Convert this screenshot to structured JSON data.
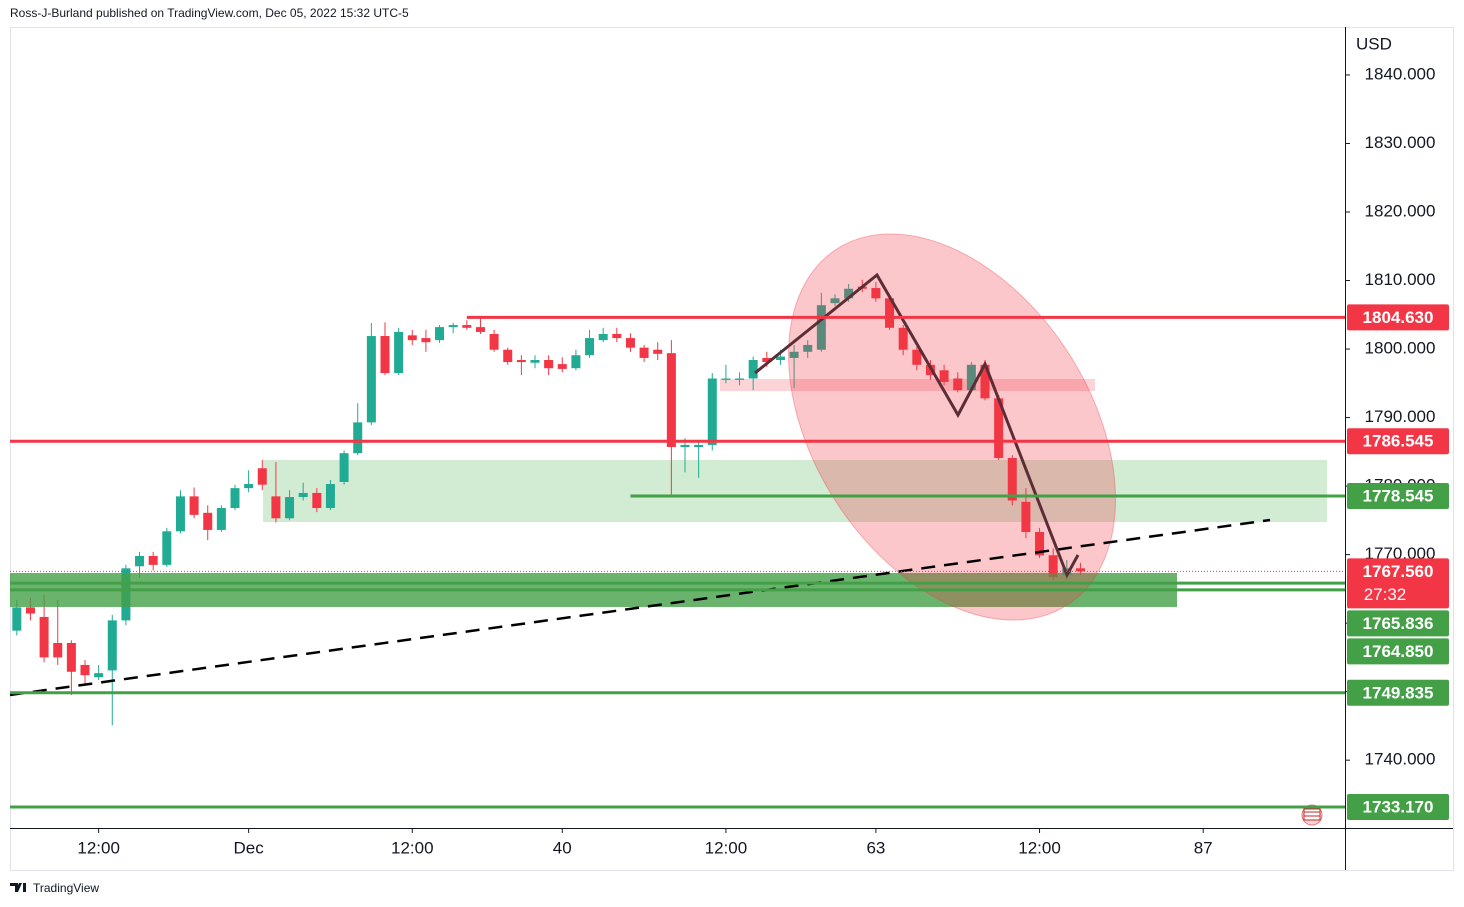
{
  "header": "Ross-J-Burland published on TradingView.com, Dec 05, 2022 15:32 UTC-5",
  "footer": "TradingView",
  "chart_data": {
    "type": "candlestick",
    "currency": "USD",
    "up_color": "#22ab94",
    "down_color": "#f23645",
    "x": [
      0,
      1,
      2,
      3,
      4,
      5,
      6,
      7,
      8,
      9,
      10,
      11,
      12,
      13,
      14,
      15,
      16,
      17,
      18,
      19,
      20,
      21,
      22,
      23,
      24,
      25,
      26,
      27,
      28,
      29,
      30,
      31,
      32,
      33,
      34,
      35,
      36,
      37,
      38,
      39,
      40,
      41,
      42,
      43,
      44,
      45,
      46,
      47,
      48,
      49,
      50,
      51,
      52,
      53,
      54,
      55,
      56,
      57,
      58,
      59,
      60,
      61,
      62,
      63,
      64,
      65,
      66,
      67,
      68,
      69,
      70,
      71,
      72,
      73,
      74,
      75,
      76,
      77,
      78
    ],
    "open": [
      1758.9,
      1762.3,
      1760.9,
      1757.1,
      1757.1,
      1753.9,
      1752.1,
      1753.1,
      1760.4,
      1768.3,
      1769.8,
      1768.5,
      1773.4,
      1778.5,
      1776.1,
      1773.6,
      1776.8,
      1779.7,
      1782.6,
      1778.5,
      1775.3,
      1778.4,
      1779.0,
      1776.8,
      1780.6,
      1784.8,
      1789.3,
      1801.9,
      1796.5,
      1802.0,
      1801.6,
      1801.3,
      1803.2,
      1803.5,
      1803.2,
      1802.2,
      1799.9,
      1798.4,
      1798.0,
      1798.4,
      1797.8,
      1797.2,
      1799.1,
      1801.3,
      1802.2,
      1801.6,
      1800.2,
      1799.9,
      1799.4,
      1785.7,
      1785.7,
      1786.0,
      1795.5,
      1795.5,
      1795.7,
      1798.7,
      1798.4,
      1798.7,
      1799.6,
      1799.9,
      1806.7,
      1807.4,
      1809.1,
      1808.9,
      1807.4,
      1803.1,
      1799.9,
      1797.7,
      1796.9,
      1795.7,
      1794.0,
      1797.7,
      1792.8,
      1784.1,
      1777.7,
      1773.3,
      1769.9,
      1767.0,
      1768.0
    ],
    "high": [
      1763.4,
      1763.7,
      1764.1,
      1763.4,
      1757.5,
      1754.6,
      1753.9,
      1761.2,
      1768.5,
      1770.4,
      1770.4,
      1773.9,
      1779.4,
      1779.8,
      1777.2,
      1777.2,
      1780.2,
      1782.3,
      1783.8,
      1783.5,
      1779.4,
      1780.5,
      1779.7,
      1780.9,
      1785.2,
      1792.1,
      1803.8,
      1803.9,
      1803.1,
      1802.8,
      1802.8,
      1803.5,
      1803.8,
      1804.2,
      1804.5,
      1802.8,
      1800.2,
      1799.1,
      1799.1,
      1799.1,
      1798.8,
      1799.9,
      1802.8,
      1803.1,
      1803.1,
      1802.3,
      1800.6,
      1801.0,
      1801.3,
      1787.0,
      1786.7,
      1796.5,
      1797.7,
      1796.6,
      1798.9,
      1799.6,
      1799.9,
      1800.6,
      1801.3,
      1808.2,
      1808.0,
      1809.5,
      1810.1,
      1809.8,
      1807.9,
      1803.5,
      1800.3,
      1798.4,
      1797.7,
      1796.6,
      1798.1,
      1798.4,
      1793.3,
      1784.5,
      1779.7,
      1773.9,
      1770.9,
      1769.2,
      1768.8
    ],
    "low": [
      1758.2,
      1760.4,
      1754.3,
      1753.9,
      1749.5,
      1751.0,
      1751.7,
      1745.1,
      1759.7,
      1766.6,
      1767.7,
      1768.2,
      1773.1,
      1775.3,
      1772.1,
      1773.3,
      1776.5,
      1779.1,
      1779.4,
      1774.7,
      1775.0,
      1777.9,
      1776.2,
      1776.5,
      1780.2,
      1784.5,
      1788.9,
      1796.2,
      1796.2,
      1800.6,
      1799.6,
      1800.9,
      1802.3,
      1802.8,
      1802.2,
      1799.6,
      1797.7,
      1796.2,
      1797.2,
      1796.2,
      1796.6,
      1796.9,
      1798.7,
      1801.0,
      1801.0,
      1799.6,
      1798.1,
      1798.4,
      1778.7,
      1782.0,
      1781.2,
      1785.2,
      1795.0,
      1794.7,
      1794.0,
      1797.4,
      1797.7,
      1794.3,
      1798.7,
      1799.6,
      1806.3,
      1806.9,
      1808.3,
      1806.9,
      1802.8,
      1799.1,
      1796.9,
      1795.5,
      1794.7,
      1793.7,
      1793.7,
      1792.5,
      1783.8,
      1777.2,
      1772.4,
      1769.5,
      1766.3,
      1766.3,
      1767.0
    ],
    "close": [
      1762.3,
      1761.4,
      1755.0,
      1755.0,
      1752.9,
      1752.4,
      1752.7,
      1760.4,
      1768.0,
      1769.8,
      1768.5,
      1773.4,
      1778.5,
      1775.8,
      1773.6,
      1776.8,
      1779.7,
      1780.3,
      1780.2,
      1775.3,
      1778.4,
      1779.0,
      1776.8,
      1780.3,
      1784.8,
      1789.3,
      1801.9,
      1796.5,
      1802.5,
      1801.3,
      1801.0,
      1803.2,
      1803.5,
      1803.1,
      1802.5,
      1799.9,
      1798.1,
      1798.1,
      1798.4,
      1797.2,
      1797.1,
      1799.1,
      1801.6,
      1802.2,
      1801.6,
      1800.2,
      1798.7,
      1799.3,
      1785.7,
      1786.0,
      1786.0,
      1795.7,
      1795.7,
      1795.7,
      1798.4,
      1798.1,
      1798.9,
      1799.6,
      1800.6,
      1806.4,
      1807.4,
      1808.8,
      1808.8,
      1807.4,
      1803.1,
      1799.9,
      1797.7,
      1796.2,
      1795.2,
      1794.0,
      1797.7,
      1792.8,
      1784.1,
      1777.9,
      1773.3,
      1769.9,
      1766.7,
      1768.0,
      1767.56
    ],
    "xlim": [
      -0.5,
      97.4
    ],
    "xticks": [
      {
        "value": 6,
        "label": "12:00"
      },
      {
        "value": 17,
        "label": "Dec"
      },
      {
        "value": 29,
        "label": "12:00"
      },
      40,
      {
        "value": 52,
        "label": "12:00"
      },
      63,
      {
        "value": 75,
        "label": "12:00"
      },
      87
    ],
    "ylim": [
      1730.1,
      1847.0
    ],
    "yticks": [
      {
        "value": 1740,
        "label": "1740.000"
      },
      {
        "value": 1750,
        "label": "1750.000"
      },
      {
        "value": 1760,
        "label": "1760.000"
      },
      {
        "value": 1770,
        "label": "1770.000"
      },
      {
        "value": 1780,
        "label": "1780.000"
      },
      {
        "value": 1790,
        "label": "1790.000"
      },
      {
        "value": 1800,
        "label": "1800.000"
      },
      {
        "value": 1810,
        "label": "1810.000"
      },
      {
        "value": 1820,
        "label": "1820.000"
      },
      {
        "value": 1830,
        "label": "1830.000"
      },
      {
        "value": 1840,
        "label": "1840.000"
      }
    ],
    "levels": [
      {
        "value": 1804.63,
        "label": "1804.630",
        "color": "#f23645",
        "start": 33
      },
      {
        "value": 1786.545,
        "label": "1786.545",
        "color": "#f23645"
      },
      {
        "value": 1778.545,
        "label": "1778.545",
        "color": "#43a047",
        "start": 45
      },
      {
        "value": 1765.836,
        "label": "1765.836",
        "color": "#43a047"
      },
      {
        "value": 1764.85,
        "label": "1764.850",
        "color": "#43a047"
      },
      {
        "value": 1749.835,
        "label": "1749.835",
        "color": "#43a047"
      },
      {
        "value": 1733.17,
        "label": "1733.170",
        "color": "#43a047"
      }
    ],
    "last_price": {
      "value": 1767.56,
      "label": "1767.560",
      "color": "#f23645"
    },
    "countdown": "27:32"
  }
}
